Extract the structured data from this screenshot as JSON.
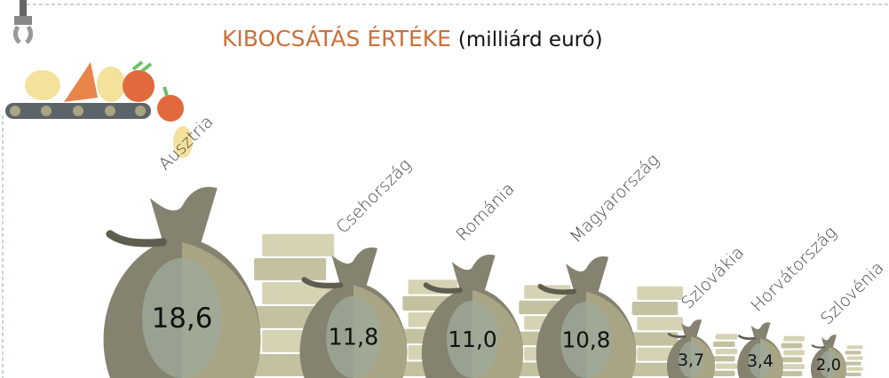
{
  "chart_data": {
    "type": "bar",
    "title": "KIBOCSÁTÁS ÉRTÉKE",
    "subtitle": "(milliárd euró)",
    "categories": [
      "Ausztria",
      "Csehország",
      "Románia",
      "Magyarország",
      "Szlovákia",
      "Horvátország",
      "Szlovénia"
    ],
    "values": [
      18.6,
      11.8,
      11.0,
      10.8,
      3.7,
      3.4,
      2.0
    ],
    "value_labels": [
      "18,6",
      "11,8",
      "11,0",
      "10,8",
      "3,7",
      "3,4",
      "2,0"
    ],
    "color": "#858270"
  }
}
